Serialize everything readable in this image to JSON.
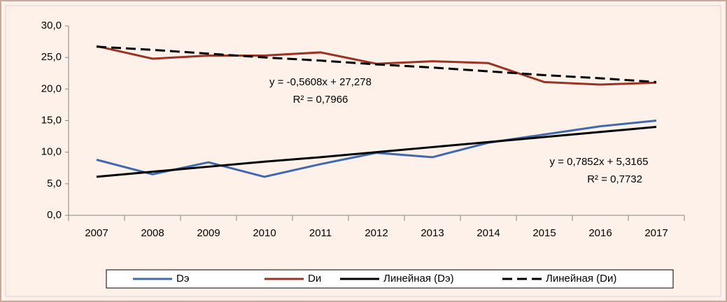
{
  "chart_data": {
    "type": "line",
    "categories": [
      "2007",
      "2008",
      "2009",
      "2010",
      "2011",
      "2012",
      "2013",
      "2014",
      "2015",
      "2016",
      "2017"
    ],
    "series": [
      {
        "name": "Dэ",
        "color": "#4169b0",
        "dashed": false,
        "values": [
          8.8,
          6.5,
          8.4,
          6.1,
          8.1,
          9.9,
          9.2,
          11.5,
          12.8,
          14.1,
          15.0
        ]
      },
      {
        "name": "Dи",
        "color": "#9b3222",
        "dashed": false,
        "values": [
          26.8,
          24.8,
          25.3,
          25.3,
          25.8,
          24.0,
          24.4,
          24.1,
          21.1,
          20.7,
          21.0
        ]
      },
      {
        "name": "Линейная (Dэ)",
        "color": "#000000",
        "dashed": false,
        "values": [
          6.1,
          6.9,
          7.7,
          8.5,
          9.2,
          10.0,
          10.8,
          11.6,
          12.4,
          13.2,
          14.0
        ]
      },
      {
        "name": "Линейная (Dи)",
        "color": "#000000",
        "dashed": true,
        "values": [
          26.7,
          26.2,
          25.6,
          25.0,
          24.5,
          23.9,
          23.4,
          22.8,
          22.2,
          21.7,
          21.1
        ]
      }
    ],
    "annotations": [
      "y = -0,5608x + 27,278",
      "R² = 0,7966",
      "y = 0,7852x + 5,3165",
      "R² = 0,7732"
    ],
    "ylim": [
      0,
      30
    ],
    "yticks": [
      {
        "value": 0,
        "label": "0,0"
      },
      {
        "value": 5,
        "label": "5,0"
      },
      {
        "value": 10,
        "label": "10,0"
      },
      {
        "value": 15,
        "label": "15,0"
      },
      {
        "value": 20,
        "label": "20,0"
      },
      {
        "value": 25,
        "label": "25,0"
      },
      {
        "value": 30,
        "label": "30,0"
      }
    ],
    "grid": false,
    "legend": "bottom"
  }
}
